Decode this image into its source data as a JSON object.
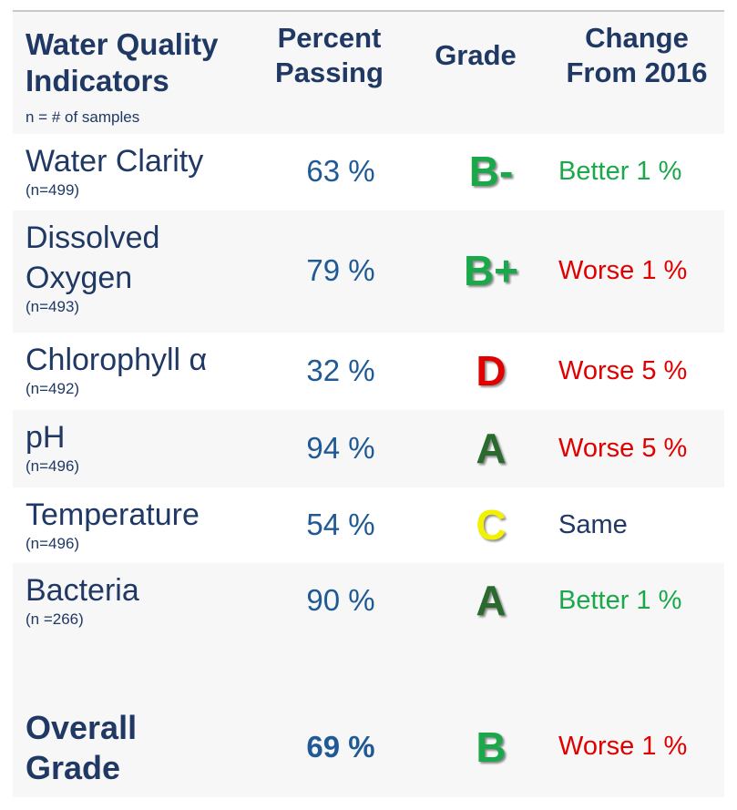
{
  "header": {
    "title": "Water Quality Indicators",
    "subtitle": "n = # of samples",
    "columns": [
      "Percent Passing",
      "Grade",
      "Change From 2016"
    ]
  },
  "rows": [
    {
      "name": "Water Clarity",
      "n": "(n=499)",
      "percent": "63 %",
      "grade": "B-",
      "grade_color": "#1aa84a",
      "change": "Better 1 %",
      "change_color": "#1aa84a"
    },
    {
      "name": "Dissolved Oxygen",
      "n": "(n=493)",
      "percent": "79 %",
      "grade": "B+",
      "grade_color": "#1aa84a",
      "change": "Worse 1 %",
      "change_color": "#e00000"
    },
    {
      "name": "Chlorophyll α",
      "n": "(n=492)",
      "percent": "32 %",
      "grade": "D",
      "grade_color": "#e00000",
      "change": "Worse 5 %",
      "change_color": "#e00000"
    },
    {
      "name": "pH",
      "n": "(n=496)",
      "percent": "94 %",
      "grade": "A",
      "grade_color": "#2a6a2e",
      "change": "Worse 5 %",
      "change_color": "#e00000"
    },
    {
      "name": "Temperature",
      "n": "(n=496)",
      "percent": "54 %",
      "grade": "C",
      "grade_color": "#f2f200",
      "change": "Same",
      "change_color": "#1f3864"
    },
    {
      "name": "Bacteria",
      "n": "(n =266)",
      "percent": "90 %",
      "grade": "A",
      "grade_color": "#2a6a2e",
      "change": "Better 1 %",
      "change_color": "#1aa84a"
    }
  ],
  "overall": {
    "name": "Overall Grade",
    "percent": "69 %",
    "grade": "B",
    "grade_color": "#1aa84a",
    "change": "Worse 1 %",
    "change_color": "#e00000"
  }
}
